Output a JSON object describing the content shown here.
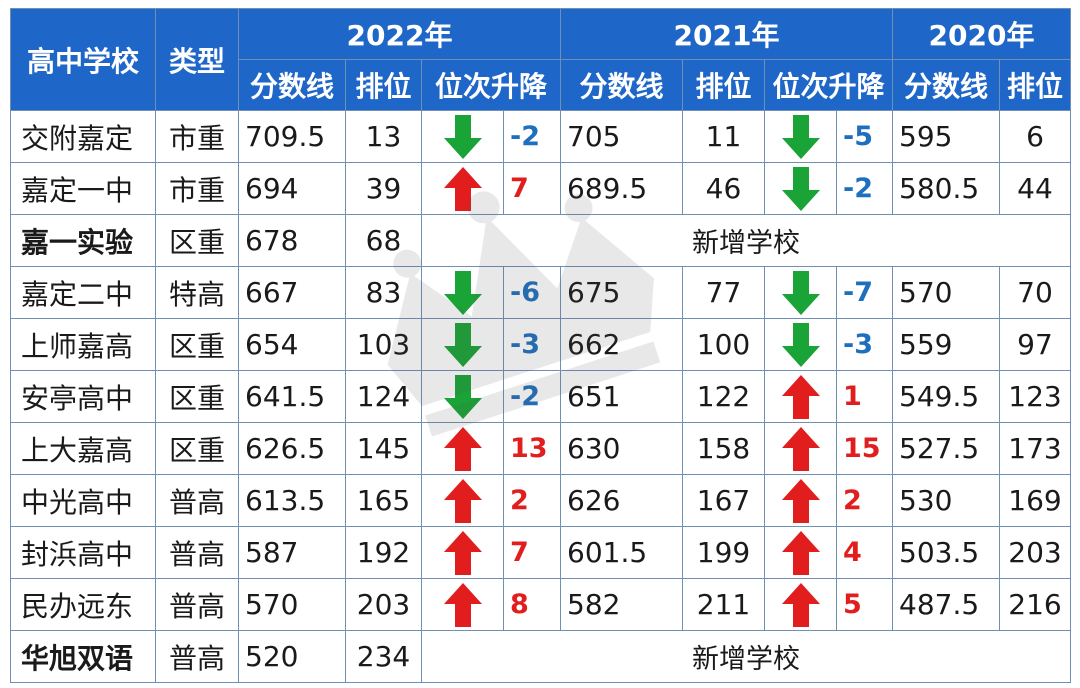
{
  "header": {
    "school_col": "高中学校",
    "type_col": "类型",
    "years": [
      "2022年",
      "2021年",
      "2020年"
    ],
    "sub_score": "分数线",
    "sub_rank": "排位",
    "sub_change": "位次升降"
  },
  "rows": [
    {
      "school": "交附嘉定",
      "type": "市重",
      "s22": "709.5",
      "r22": "13",
      "c22": "-2",
      "d22": "down",
      "s21": "705",
      "r21": "11",
      "c21": "-5",
      "d21": "down",
      "s20": "595",
      "r20": "6"
    },
    {
      "school": "嘉定一中",
      "type": "市重",
      "s22": "694",
      "r22": "39",
      "c22": "7",
      "d22": "up",
      "s21": "689.5",
      "r21": "46",
      "c21": "-2",
      "d21": "down",
      "s20": "580.5",
      "r20": "44"
    },
    {
      "school": "嘉一实验",
      "type": "区重",
      "s22": "678",
      "r22": "68",
      "new": "新增学校",
      "bold": true
    },
    {
      "school": "嘉定二中",
      "type": "特高",
      "s22": "667",
      "r22": "83",
      "c22": "-6",
      "d22": "down",
      "s21": "675",
      "r21": "77",
      "c21": "-7",
      "d21": "down",
      "s20": "570",
      "r20": "70"
    },
    {
      "school": "上师嘉高",
      "type": "区重",
      "s22": "654",
      "r22": "103",
      "c22": "-3",
      "d22": "down",
      "s21": "662",
      "r21": "100",
      "c21": "-3",
      "d21": "down",
      "s20": "559",
      "r20": "97"
    },
    {
      "school": "安亭高中",
      "type": "区重",
      "s22": "641.5",
      "r22": "124",
      "c22": "-2",
      "d22": "down",
      "s21": "651",
      "r21": "122",
      "c21": "1",
      "d21": "up",
      "s20": "549.5",
      "r20": "123"
    },
    {
      "school": "上大嘉高",
      "type": "区重",
      "s22": "626.5",
      "r22": "145",
      "c22": "13",
      "d22": "up",
      "s21": "630",
      "r21": "158",
      "c21": "15",
      "d21": "up",
      "s20": "527.5",
      "r20": "173"
    },
    {
      "school": "中光高中",
      "type": "普高",
      "s22": "613.5",
      "r22": "165",
      "c22": "2",
      "d22": "up",
      "s21": "626",
      "r21": "167",
      "c21": "2",
      "d21": "up",
      "s20": "530",
      "r20": "169"
    },
    {
      "school": "封浜高中",
      "type": "普高",
      "s22": "587",
      "r22": "192",
      "c22": "7",
      "d22": "up",
      "s21": "601.5",
      "r21": "199",
      "c21": "4",
      "d21": "up",
      "s20": "503.5",
      "r20": "203"
    },
    {
      "school": "民办远东",
      "type": "普高",
      "s22": "570",
      "r22": "203",
      "c22": "8",
      "d22": "up",
      "s21": "582",
      "r21": "211",
      "c21": "5",
      "d21": "up",
      "s20": "487.5",
      "r20": "216"
    },
    {
      "school": "华旭双语",
      "type": "普高",
      "s22": "520",
      "r22": "234",
      "new": "新增学校",
      "bold": true
    }
  ],
  "colors": {
    "header_bg": "#1f66c9",
    "up": "#e21d1d",
    "down": "#1aa336",
    "down_text": "#1f6fbf"
  },
  "icons": {
    "up": "red-up-arrow-icon",
    "down": "green-down-arrow-icon",
    "watermark": "crown-watermark-icon"
  }
}
